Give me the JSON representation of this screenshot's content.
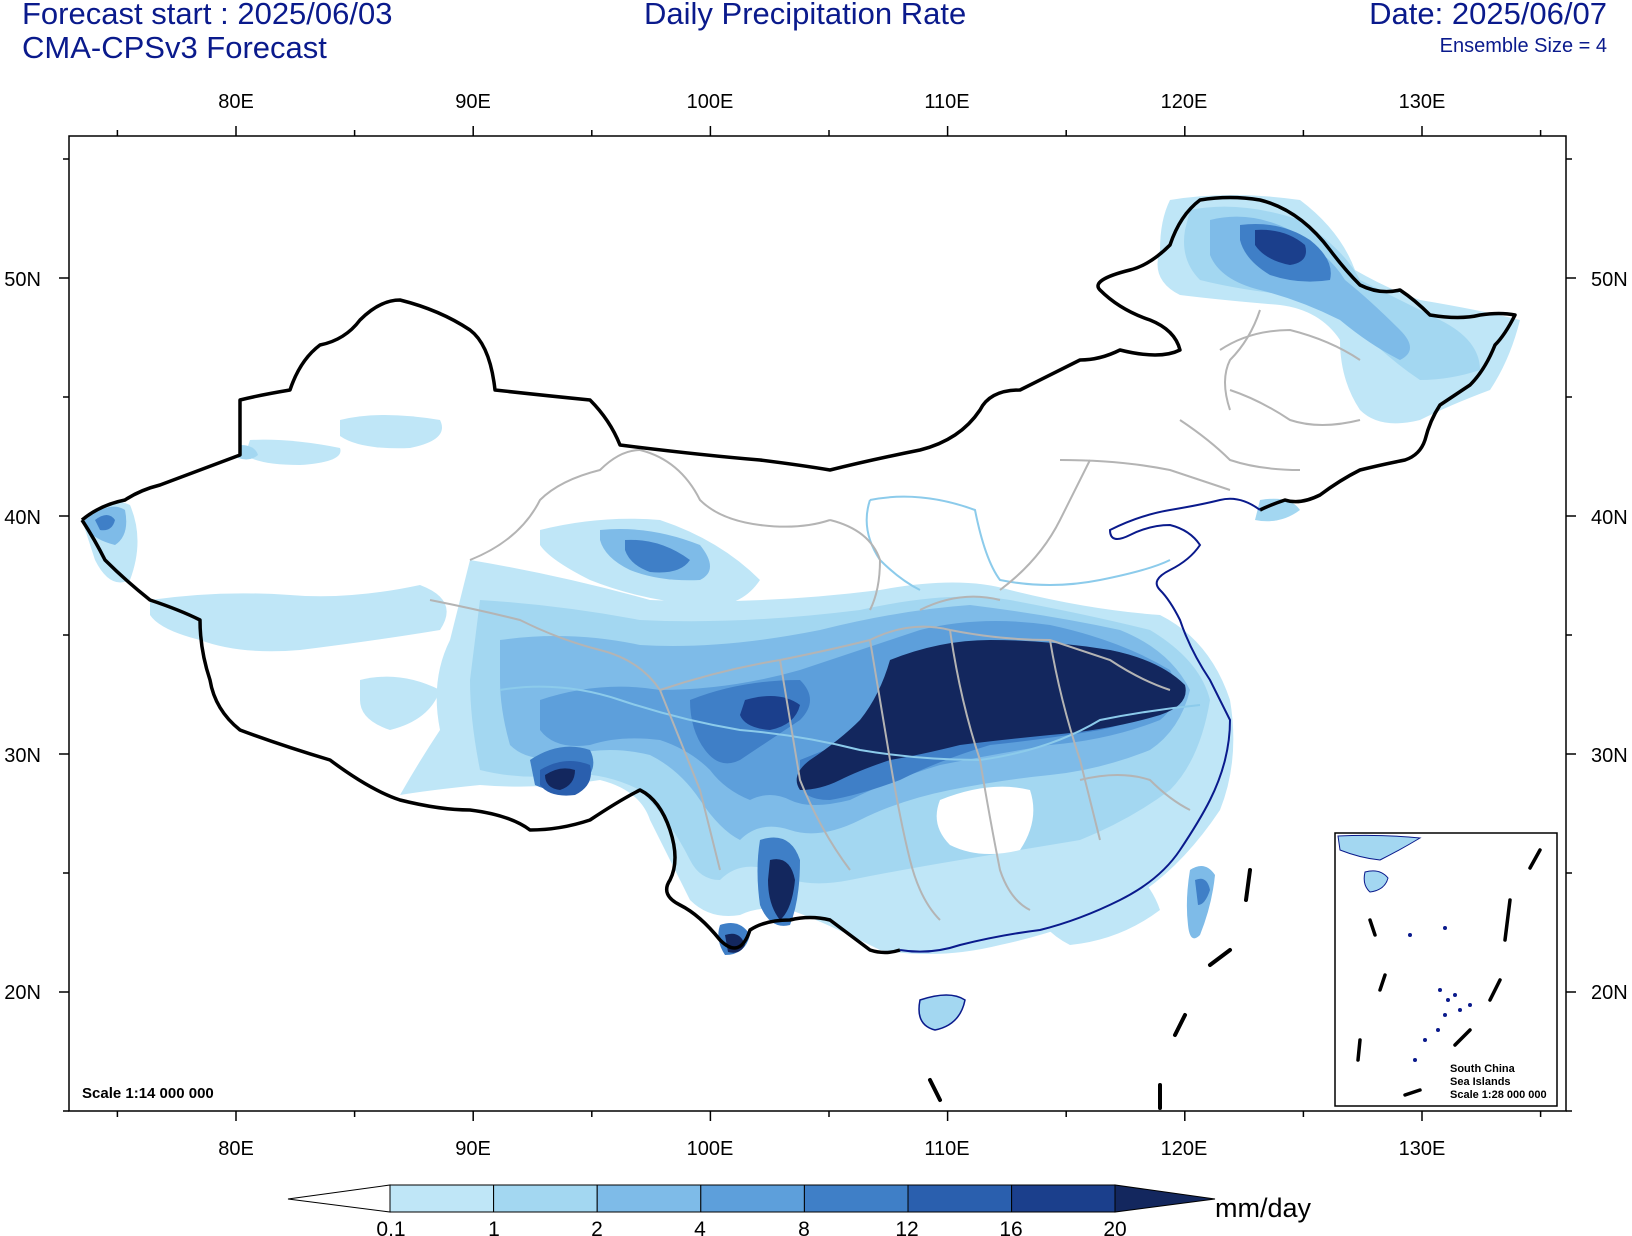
{
  "header": {
    "forecast_start": "Forecast start : 2025/06/03",
    "model": "CMA-CPSv3 Forecast",
    "title": "Daily Precipitation Rate",
    "date": "Date: 2025/06/07",
    "ensemble": "Ensemble Size = 4"
  },
  "map": {
    "lon_ticks": [
      "80E",
      "90E",
      "100E",
      "110E",
      "120E",
      "130E"
    ],
    "lat_ticks": [
      "50N",
      "40N",
      "30N",
      "20N"
    ],
    "scale_note": "Scale 1:14 000 000",
    "inset": {
      "line1": "South China",
      "line2": "Sea Islands",
      "line3": "Scale 1:28 000 000"
    }
  },
  "colorbar": {
    "units": "mm/day",
    "levels": [
      "0.1",
      "1",
      "2",
      "4",
      "8",
      "12",
      "16",
      "20"
    ],
    "colors": [
      "#bfe6f7",
      "#a3d7f1",
      "#7ebbe8",
      "#5d9fdb",
      "#3f7fc7",
      "#2a5fae",
      "#1b3f8c",
      "#13275e"
    ]
  },
  "colors": {
    "border_country": "#000000",
    "border_province": "#b4b4b4",
    "rivers": "#8ccbeb",
    "coast": "#0a1a8c",
    "title_text": "#0a1a8c"
  }
}
